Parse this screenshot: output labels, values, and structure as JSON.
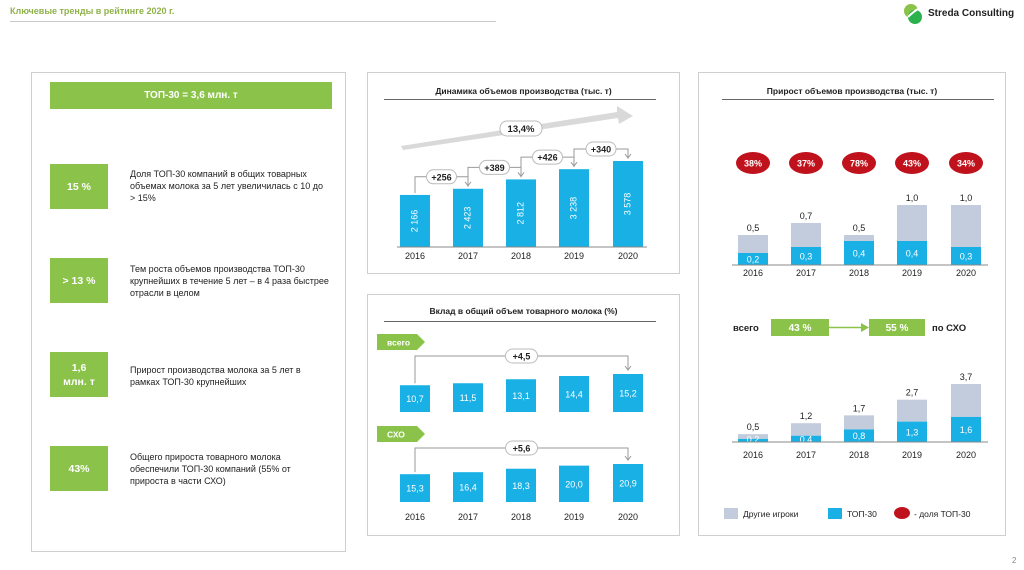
{
  "header": {
    "title": "Ключевые тренды в рейтинге 2020 г.",
    "logo_text": "Streda Consulting"
  },
  "page_number": "2",
  "colors": {
    "green": "#8bc34a",
    "blue": "#19b0e6",
    "grey": "#c3ccdc",
    "red": "#c0121c"
  },
  "left_panel": {
    "banner": "ТОП-30 = 3,6 млн. т",
    "kpis": [
      {
        "value": "15 %",
        "text": "Доля ТОП-30 компаний в общих товарных объемах молока за 5 лет увеличилась с 10 до > 15%"
      },
      {
        "value": "> 13 %",
        "text": "Тем роста объемов производства ТОП-30 крупнейших в течение 5 лет – в 4 раза быстрее отрасли в целом"
      },
      {
        "value": "1,6 млн. т",
        "text": "Прирост производства молока за 5 лет в рамках ТОП-30 крупнейших"
      },
      {
        "value": "43%",
        "text": "Общего прироста товарного молока обеспечили ТОП-30 компаний (55% от прироста в части СХО)"
      }
    ]
  },
  "chart_data": [
    {
      "type": "bar",
      "title": "Динамика объемов производства (тыс. т)",
      "categories": [
        "2016",
        "2017",
        "2018",
        "2019",
        "2020"
      ],
      "values": [
        2166,
        2423,
        2812,
        3238,
        3578
      ],
      "value_labels": [
        "2 166",
        "2 423",
        "2 812",
        "3 238",
        "3 578"
      ],
      "increments": [
        "+256",
        "+389",
        "+426",
        "+340"
      ],
      "cagr_label": "13,4%"
    },
    {
      "type": "bar",
      "title": "Вклад в общий объем товарного молока (%)",
      "panels": [
        {
          "label": "всего",
          "categories": [
            "2016",
            "2017",
            "2018",
            "2019",
            "2020"
          ],
          "values": [
            10.7,
            11.5,
            13.1,
            14.4,
            15.2
          ],
          "value_labels": [
            "10,7",
            "11,5",
            "13,1",
            "14,4",
            "15,2"
          ],
          "delta": "+4,5"
        },
        {
          "label": "СХО",
          "categories": [
            "2016",
            "2017",
            "2018",
            "2019",
            "2020"
          ],
          "values": [
            15.3,
            16.4,
            18.3,
            20.0,
            20.9
          ],
          "value_labels": [
            "15,3",
            "16,4",
            "18,3",
            "20,0",
            "20,9"
          ],
          "delta": "+5,6"
        }
      ]
    },
    {
      "type": "bar",
      "title": "Прирост объемов производства (тыс. т)",
      "stacked": true,
      "categories": [
        "2016",
        "2017",
        "2018",
        "2019",
        "2020"
      ],
      "upper": {
        "top30": [
          0.2,
          0.3,
          0.4,
          0.4,
          0.3
        ],
        "top30_labels": [
          "0,2",
          "0,3",
          "0,4",
          "0,4",
          "0,3"
        ],
        "total": [
          0.5,
          0.7,
          0.5,
          1.0,
          1.0
        ],
        "total_labels": [
          "0,5",
          "0,7",
          "0,5",
          "1,0",
          "1,0"
        ],
        "share_labels": [
          "38%",
          "37%",
          "78%",
          "43%",
          "34%"
        ]
      },
      "lower": {
        "top30": [
          0.2,
          0.4,
          0.8,
          1.3,
          1.6
        ],
        "top30_labels": [
          "0,2",
          "0,4",
          "0,8",
          "1,3",
          "1,6"
        ],
        "total": [
          0.5,
          1.2,
          1.7,
          2.7,
          3.7
        ],
        "total_labels": [
          "0,5",
          "1,2",
          "1,7",
          "2,7",
          "3,7"
        ]
      },
      "middle": {
        "left_label": "всего",
        "from": "43 %",
        "to": "55 %",
        "right_label": "по СХО"
      },
      "legend": [
        "Другие игроки",
        "ТОП-30",
        "- доля ТОП-30"
      ]
    }
  ]
}
